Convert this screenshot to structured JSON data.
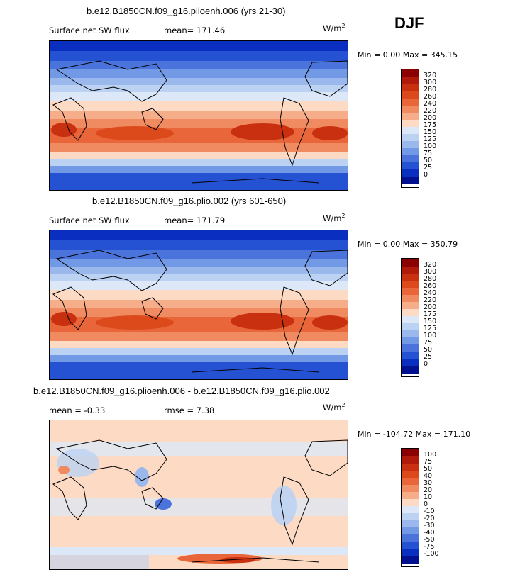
{
  "season": "DJF",
  "panels": [
    {
      "title": "b.e12.B1850CN.f09_g16.plioenh.006 (yrs 21-30)",
      "left_label": "Surface net SW flux",
      "stat_label": "mean= 171.46",
      "units": "W/m",
      "units_exp": "2",
      "minmax": "Min =   0.00 Max = 345.15",
      "colorbar_labels": [
        "320",
        "300",
        "280",
        "260",
        "240",
        "220",
        "200",
        "175",
        "150",
        "125",
        "100",
        "75",
        "50",
        "25",
        "0"
      ]
    },
    {
      "title": "b.e12.B1850CN.f09_g16.plio.002 (yrs 601-650)",
      "left_label": "Surface net SW flux",
      "stat_label": "mean= 171.79",
      "units": "W/m",
      "units_exp": "2",
      "minmax": "Min =   0.00 Max = 350.79",
      "colorbar_labels": [
        "320",
        "300",
        "280",
        "260",
        "240",
        "220",
        "200",
        "175",
        "150",
        "125",
        "100",
        "75",
        "50",
        "25",
        "0"
      ]
    },
    {
      "title": "b.e12.B1850CN.f09_g16.plioenh.006 - b.e12.B1850CN.f09_g16.plio.002",
      "left_label": "mean =  -0.33",
      "stat_label": "rmse =   7.38",
      "units": "W/m",
      "units_exp": "2",
      "minmax": "Min = -104.72 Max = 171.10",
      "colorbar_labels": [
        "100",
        "75",
        "50",
        "40",
        "30",
        "20",
        "10",
        "0",
        "-10",
        "-20",
        "-30",
        "-40",
        "-50",
        "-75",
        "-100"
      ]
    }
  ],
  "colors": {
    "scale": [
      "#8b0000",
      "#b01a0a",
      "#c8300f",
      "#dc4a1c",
      "#e8663a",
      "#f08a60",
      "#f6ad8a",
      "#fcdac4",
      "#dce8f8",
      "#bcd2f2",
      "#9ab8ec",
      "#7299e6",
      "#4a74dc",
      "#2452d2",
      "#0a2ec0",
      "#00108e"
    ],
    "frame": "#000000"
  }
}
